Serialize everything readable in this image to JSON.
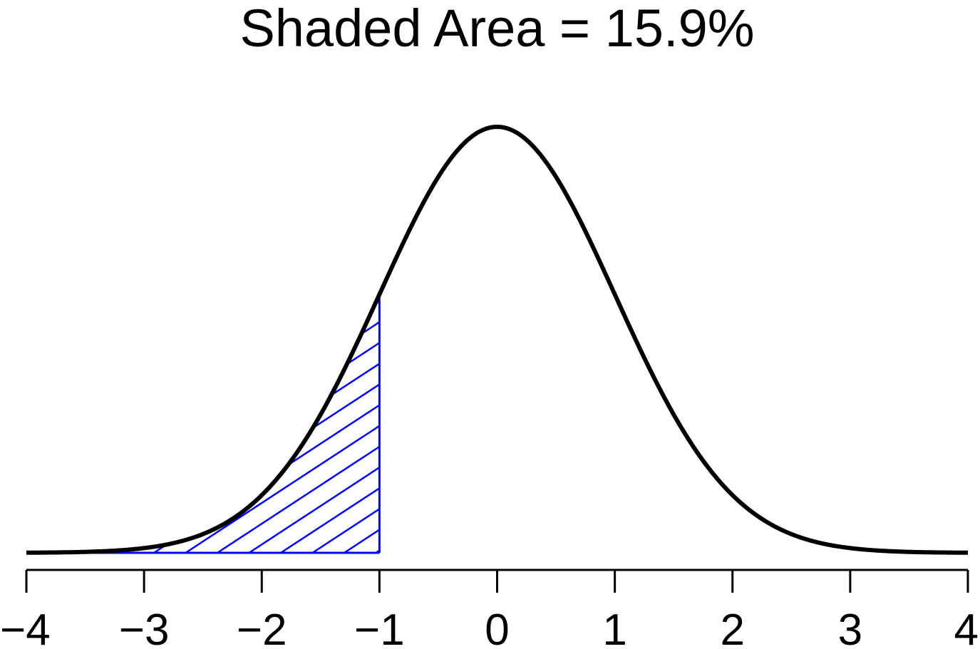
{
  "chart_data": {
    "type": "area",
    "title": "Shaded Area = 15.9%",
    "distribution": "standard normal",
    "mean": 0,
    "sd": 1,
    "xlim": [
      -4,
      4
    ],
    "x_ticks": [
      -4,
      -3,
      -2,
      -1,
      0,
      1,
      2,
      3,
      4
    ],
    "x_tick_labels": [
      "−4",
      "−3",
      "−2",
      "−1",
      "0",
      "1",
      "2",
      "3",
      "4"
    ],
    "shaded_region": {
      "from": -4,
      "to": -1,
      "fill": "diagonal hatch",
      "color": "#0000ff"
    },
    "shaded_area_percent": 15.9,
    "curve_color": "#000000",
    "xlabel": "",
    "ylabel": "",
    "grid": false
  }
}
